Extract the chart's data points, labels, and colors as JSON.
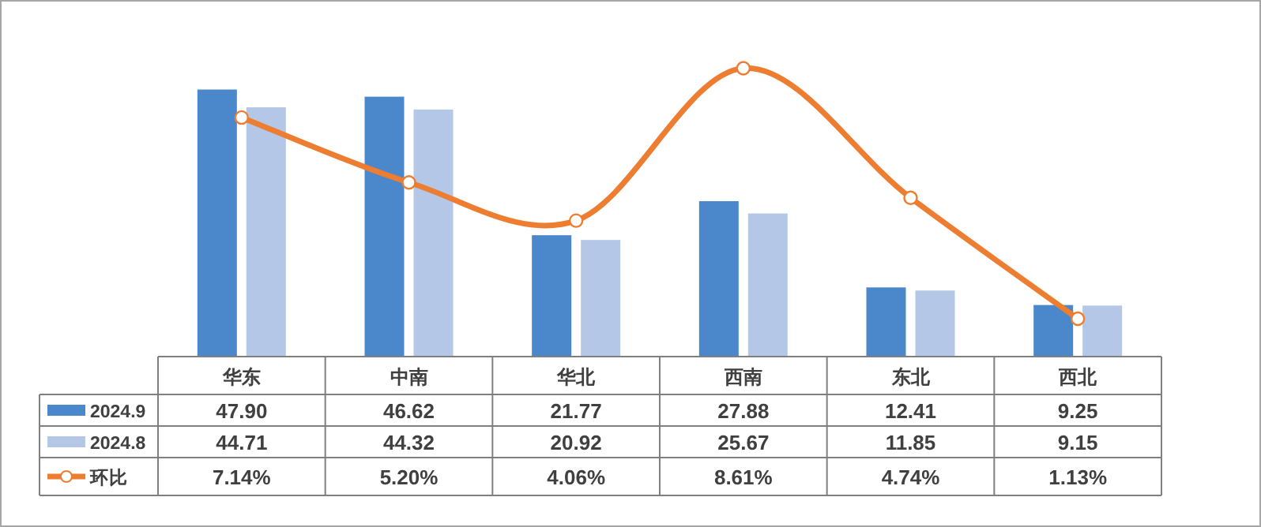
{
  "chart_data": {
    "type": "bar",
    "categories": [
      "华东",
      "中南",
      "华北",
      "西南",
      "东北",
      "西北"
    ],
    "tick_labels": "x",
    "legend": "bottom",
    "series": [
      {
        "name": "2024.9",
        "color": "#4a88cb",
        "values": [
          47.9,
          46.62,
          21.77,
          27.88,
          12.41,
          9.25
        ],
        "value_labels": [
          "47.90",
          "46.62",
          "21.77",
          "27.88",
          "12.41",
          "9.25"
        ]
      },
      {
        "name": "2024.8",
        "color": "#b4c7e7",
        "values": [
          44.71,
          44.32,
          20.92,
          25.67,
          11.85,
          9.15
        ],
        "value_labels": [
          "44.71",
          "44.32",
          "20.92",
          "25.67",
          "11.85",
          "9.15"
        ]
      },
      {
        "name": "环比",
        "type": "line",
        "axis": "y2",
        "color": "#ed7d31",
        "marker": "circle",
        "line_style": "solid",
        "values": [
          7.14,
          5.2,
          4.06,
          8.61,
          4.74,
          1.13
        ],
        "value_labels": [
          "7.14%",
          "5.20%",
          "4.06%",
          "8.61%",
          "4.74%",
          "1.13%"
        ]
      }
    ]
  }
}
